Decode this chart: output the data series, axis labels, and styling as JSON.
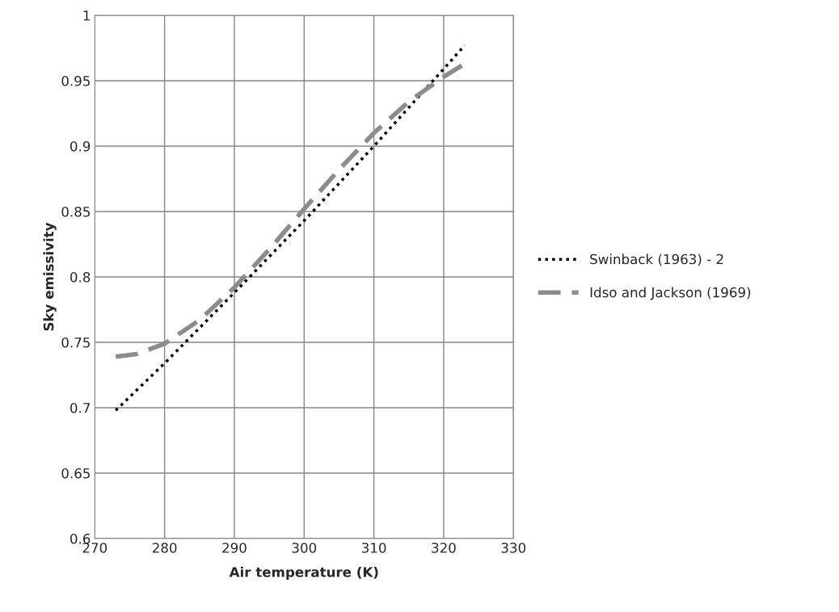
{
  "chart_data": {
    "type": "line",
    "xlabel": "Air temperature (K)",
    "ylabel": "Sky emissivity",
    "series": [
      {
        "name": "Swinback (1963) - 2",
        "color": "#000000",
        "line_style": "dotted",
        "x": [
          273,
          280,
          290,
          300,
          310,
          320,
          323
        ],
        "values": [
          0.698,
          0.734,
          0.788,
          0.843,
          0.9,
          0.959,
          0.977
        ]
      },
      {
        "name": "Idso and Jackson (1969)",
        "color": "#8c8c8c",
        "line_style": "dashed",
        "x": [
          273,
          276,
          280,
          285,
          290,
          295,
          300,
          305,
          310,
          315,
          320,
          323
        ],
        "values": [
          0.739,
          0.741,
          0.749,
          0.767,
          0.792,
          0.821,
          0.852,
          0.882,
          0.91,
          0.934,
          0.953,
          0.963
        ]
      }
    ],
    "xlim": [
      270,
      330
    ],
    "xticks": [
      270,
      280,
      290,
      300,
      310,
      320,
      330
    ],
    "ylim": [
      0.6,
      1
    ],
    "yticks": [
      0.6,
      0.65,
      0.7,
      0.75,
      0.8,
      0.85,
      0.9,
      0.95,
      {
        "value": 1,
        "label": "1"
      }
    ],
    "grid": true,
    "legend": "right",
    "marker": "none"
  }
}
